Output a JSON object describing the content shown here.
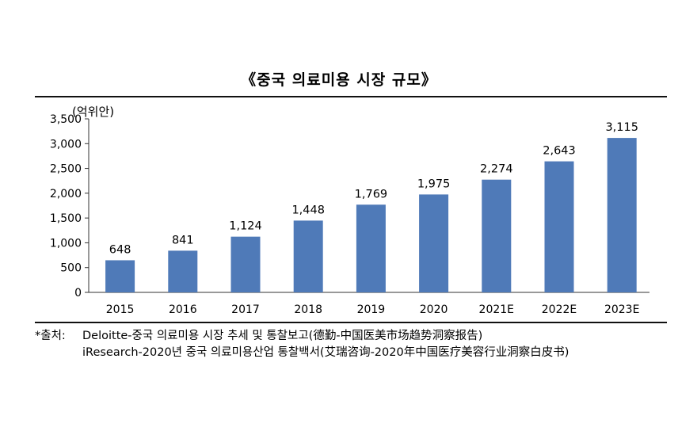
{
  "chart_data": {
    "type": "bar",
    "title": "《중국 의료미용 시장 규모》",
    "ylabel": "(억위안)",
    "categories": [
      "2015",
      "2016",
      "2017",
      "2018",
      "2019",
      "2020",
      "2021E",
      "2022E",
      "2023E"
    ],
    "values": [
      648,
      841,
      1124,
      1448,
      1769,
      1975,
      2274,
      2643,
      3115
    ],
    "value_labels": [
      "648",
      "841",
      "1,124",
      "1,448",
      "1,769",
      "1,975",
      "2,274",
      "2,643",
      "3,115"
    ],
    "ylim": [
      0,
      3500
    ],
    "yticks": [
      0,
      500,
      1000,
      1500,
      2000,
      2500,
      3000,
      3500
    ],
    "ytick_labels": [
      "0",
      "500",
      "1,000",
      "1,500",
      "2,000",
      "2,500",
      "3,000",
      "3,500"
    ],
    "bar_color": "#4f7ab8",
    "grid": false,
    "legend": "none"
  },
  "source": {
    "prefix": "*출처:",
    "line1": "Deloitte-중국 의료미용 시장 추세 및 통찰보고(德勤-中国医美市场趋势洞察报告)",
    "line2": "iResearch-2020년 중국 의료미용산업 통찰백서(艾瑞咨询-2020年中国医疗美容行业洞察白皮书)"
  }
}
